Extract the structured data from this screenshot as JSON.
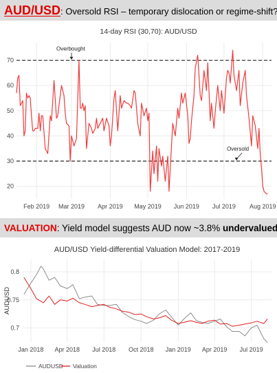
{
  "banner1": {
    "key": "AUD/USD",
    "rest": ": Oversold RSI – temporary dislocation or regime-shift?"
  },
  "banner2": {
    "key": "VALUATION",
    "rest": ": Yield model suggests AUD now ~3.8% ",
    "emph": "undervalued"
  },
  "colors": {
    "red": "#e00000",
    "rsi_line": "#ee3b3b",
    "grid": "#ebebeb",
    "banner_bg": "#dcdcdc",
    "aud_line": "#8c8c8c",
    "val_line": "#e02020"
  },
  "chart_data": [
    {
      "type": "line",
      "title": "14-day RSI (30,70): AUD/USD",
      "xlabel": "",
      "ylabel": "",
      "x_ticks": [
        "Feb 2019",
        "Mar 2019",
        "Apr 2019",
        "May 2019",
        "Jun 2019",
        "Jul 2019",
        "Aug 2019"
      ],
      "xlim": [
        "2019-01-16",
        "2019-08-08"
      ],
      "ylim": [
        15,
        77
      ],
      "y_ticks": [
        20,
        30,
        40,
        50,
        60,
        70
      ],
      "reference_lines": [
        {
          "y": 70,
          "style": "dashed",
          "label": "Overbought"
        },
        {
          "y": 30,
          "style": "dashed",
          "label": "Oversold"
        }
      ],
      "annotations": [
        {
          "text": "Overbought",
          "near_x": "2019-03-01",
          "y": 70
        },
        {
          "text": "Oversold",
          "near_x": "2019-07-11",
          "y": 30
        }
      ],
      "grid": true,
      "series": [
        {
          "x": [
            "2019-01-16",
            "2019-01-17",
            "2019-01-18",
            "2019-01-19",
            "2019-01-20",
            "2019-01-21",
            "2019-01-22",
            "2019-01-23",
            "2019-01-24",
            "2019-01-25",
            "2019-01-26",
            "2019-01-27",
            "2019-01-28",
            "2019-01-29",
            "2019-01-30",
            "2019-01-31",
            "2019-02-01",
            "2019-02-02",
            "2019-02-03",
            "2019-02-04",
            "2019-02-05",
            "2019-02-06",
            "2019-02-08",
            "2019-02-10",
            "2019-02-12",
            "2019-02-13",
            "2019-02-15",
            "2019-02-17",
            "2019-02-18",
            "2019-02-19",
            "2019-02-21",
            "2019-02-23",
            "2019-02-24",
            "2019-02-25",
            "2019-02-27",
            "2019-02-28",
            "2019-03-01",
            "2019-03-03",
            "2019-03-05",
            "2019-03-07",
            "2019-03-08",
            "2019-03-09",
            "2019-03-10",
            "2019-03-11",
            "2019-03-12",
            "2019-03-13",
            "2019-03-15",
            "2019-03-17",
            "2019-03-18",
            "2019-03-20",
            "2019-03-21",
            "2019-03-22",
            "2019-03-24",
            "2019-03-26",
            "2019-03-27",
            "2019-03-29",
            "2019-03-31",
            "2019-04-01",
            "2019-04-02",
            "2019-04-04",
            "2019-04-05",
            "2019-04-07",
            "2019-04-09",
            "2019-04-10",
            "2019-04-12",
            "2019-04-14",
            "2019-04-15",
            "2019-04-17",
            "2019-04-18",
            "2019-04-20",
            "2019-04-21",
            "2019-04-23",
            "2019-04-25",
            "2019-04-26",
            "2019-04-28",
            "2019-04-30",
            "2019-05-01",
            "2019-05-02",
            "2019-05-03",
            "2019-05-05",
            "2019-05-06",
            "2019-05-08",
            "2019-05-09",
            "2019-05-10",
            "2019-05-12",
            "2019-05-13",
            "2019-05-15",
            "2019-05-17",
            "2019-05-18",
            "2019-05-20",
            "2019-05-21",
            "2019-05-23",
            "2019-05-25",
            "2019-05-26",
            "2019-05-28",
            "2019-05-29",
            "2019-05-31",
            "2019-06-02",
            "2019-06-03",
            "2019-06-04",
            "2019-06-05",
            "2019-06-07",
            "2019-06-08",
            "2019-06-10",
            "2019-06-12",
            "2019-06-13",
            "2019-06-15",
            "2019-06-17",
            "2019-06-18",
            "2019-06-20",
            "2019-06-21",
            "2019-06-23",
            "2019-06-24",
            "2019-06-26",
            "2019-06-28",
            "2019-06-29",
            "2019-07-01",
            "2019-07-03",
            "2019-07-04",
            "2019-07-05",
            "2019-07-06",
            "2019-07-08",
            "2019-07-09",
            "2019-07-11",
            "2019-07-13",
            "2019-07-14",
            "2019-07-16",
            "2019-07-18",
            "2019-07-19",
            "2019-07-21",
            "2019-07-23",
            "2019-07-24",
            "2019-07-26",
            "2019-07-28",
            "2019-07-29",
            "2019-07-30",
            "2019-07-31",
            "2019-08-01",
            "2019-08-02",
            "2019-08-04",
            "2019-08-05"
          ],
          "y": [
            57,
            63,
            64,
            52,
            53,
            54,
            40,
            42,
            57,
            55,
            56,
            55,
            48,
            42,
            42,
            43,
            43,
            43,
            49,
            42,
            48,
            48,
            35,
            33,
            48,
            46,
            62,
            47,
            48,
            52,
            60,
            56,
            49,
            45,
            44,
            30,
            40,
            36,
            39,
            70,
            51,
            51,
            53,
            50,
            52,
            35,
            45,
            43,
            41,
            43,
            47,
            43,
            45,
            47,
            42,
            47,
            44,
            36,
            40,
            55,
            58,
            42,
            56,
            51,
            54,
            53,
            53,
            52,
            51,
            58,
            57,
            45,
            40,
            53,
            48,
            51,
            46,
            49,
            18,
            34,
            25,
            36,
            22,
            35,
            28,
            32,
            22,
            32,
            18,
            36,
            45,
            40,
            51,
            47,
            57,
            53,
            57,
            48,
            37,
            39,
            46,
            56,
            67,
            72,
            56,
            54,
            66,
            58,
            69,
            46,
            53,
            43,
            50,
            60,
            50,
            58,
            49,
            63,
            66,
            65,
            61,
            74,
            64,
            58,
            66,
            52,
            61,
            66,
            56,
            47,
            36,
            48,
            44,
            35,
            43,
            33,
            27,
            20,
            18,
            17,
            17
          ]
        }
      ]
    },
    {
      "type": "line",
      "title": "AUD/USD Yield-differential Valuation Model: 2017-2019",
      "xlabel": "",
      "ylabel": "AUDUSD",
      "x_ticks": [
        "Jan 2018",
        "Apr 2018",
        "Jul 2018",
        "Oct 2018",
        "Jan 2019",
        "Apr 2019",
        "Jul 2019"
      ],
      "xlim": [
        "2017-12-10",
        "2019-08-20"
      ],
      "ylim": [
        0.675,
        0.822
      ],
      "y_ticks": [
        0.7,
        0.75,
        0.8
      ],
      "legend": "bottom",
      "grid": true,
      "series": [
        {
          "name": "AUDUSD",
          "x": [
            "2017-12-15",
            "2018-01-01",
            "2018-01-15",
            "2018-01-26",
            "2018-02-01",
            "2018-02-15",
            "2018-03-01",
            "2018-03-15",
            "2018-04-01",
            "2018-04-15",
            "2018-05-01",
            "2018-05-15",
            "2018-06-01",
            "2018-06-15",
            "2018-07-01",
            "2018-07-15",
            "2018-08-01",
            "2018-08-15",
            "2018-09-01",
            "2018-09-15",
            "2018-10-01",
            "2018-10-15",
            "2018-11-01",
            "2018-11-15",
            "2018-12-01",
            "2018-12-15",
            "2019-01-01",
            "2019-01-15",
            "2019-02-01",
            "2019-02-15",
            "2019-03-01",
            "2019-03-15",
            "2019-04-01",
            "2019-04-15",
            "2019-05-01",
            "2019-05-15",
            "2019-06-01",
            "2019-06-15",
            "2019-07-01",
            "2019-07-15",
            "2019-08-01",
            "2019-08-10"
          ],
          "values": [
            0.76,
            0.78,
            0.795,
            0.81,
            0.805,
            0.785,
            0.79,
            0.775,
            0.77,
            0.777,
            0.752,
            0.755,
            0.757,
            0.742,
            0.74,
            0.74,
            0.742,
            0.728,
            0.72,
            0.715,
            0.712,
            0.708,
            0.714,
            0.725,
            0.732,
            0.72,
            0.705,
            0.716,
            0.727,
            0.713,
            0.71,
            0.708,
            0.712,
            0.716,
            0.702,
            0.694,
            0.694,
            0.686,
            0.7,
            0.705,
            0.681,
            0.674
          ]
        },
        {
          "name": "Valuation",
          "x": [
            "2017-12-15",
            "2018-01-01",
            "2018-01-15",
            "2018-02-01",
            "2018-02-15",
            "2018-03-01",
            "2018-03-15",
            "2018-04-01",
            "2018-04-15",
            "2018-05-01",
            "2018-05-15",
            "2018-06-01",
            "2018-06-15",
            "2018-07-01",
            "2018-07-15",
            "2018-08-01",
            "2018-08-15",
            "2018-09-01",
            "2018-09-15",
            "2018-10-01",
            "2018-10-15",
            "2018-11-01",
            "2018-11-15",
            "2018-12-01",
            "2018-12-15",
            "2019-01-01",
            "2019-01-15",
            "2019-02-01",
            "2019-02-15",
            "2019-03-01",
            "2019-03-15",
            "2019-04-01",
            "2019-04-15",
            "2019-05-01",
            "2019-05-15",
            "2019-06-01",
            "2019-06-15",
            "2019-07-01",
            "2019-07-15",
            "2019-08-01",
            "2019-08-10"
          ],
          "values": [
            0.79,
            0.77,
            0.752,
            0.745,
            0.757,
            0.742,
            0.75,
            0.748,
            0.753,
            0.745,
            0.742,
            0.738,
            0.74,
            0.742,
            0.737,
            0.734,
            0.73,
            0.728,
            0.724,
            0.725,
            0.72,
            0.716,
            0.718,
            0.722,
            0.714,
            0.708,
            0.71,
            0.713,
            0.71,
            0.708,
            0.712,
            0.714,
            0.707,
            0.708,
            0.703,
            0.705,
            0.707,
            0.709,
            0.712,
            0.708,
            0.716
          ]
        }
      ]
    }
  ]
}
